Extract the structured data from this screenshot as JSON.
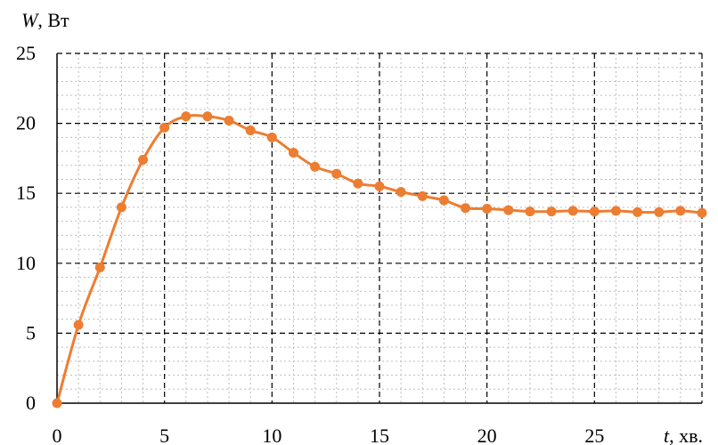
{
  "chart_data": {
    "type": "line",
    "title": "",
    "ylabel_var": "W",
    "ylabel_unit": ", Вт",
    "xlabel_var": "t",
    "xlabel_unit": ", хв.",
    "xlim": [
      0,
      30
    ],
    "ylim": [
      0,
      25
    ],
    "x_ticks": [
      0,
      5,
      10,
      15,
      20,
      25
    ],
    "y_ticks": [
      0,
      5,
      10,
      15,
      20,
      25
    ],
    "grid": {
      "major": "dashed",
      "minor": "dotted"
    },
    "legend": "none",
    "series": [
      {
        "color": "#ed7d31",
        "marker": "circle",
        "x": [
          0,
          1,
          2,
          3,
          4,
          5,
          6,
          7,
          8,
          9,
          10,
          11,
          12,
          13,
          14,
          15,
          16,
          17,
          18,
          19,
          20,
          21,
          22,
          23,
          24,
          25,
          26,
          27,
          28,
          29,
          30
        ],
        "y": [
          0,
          5.6,
          9.7,
          14.0,
          17.4,
          19.7,
          20.5,
          20.5,
          20.2,
          19.5,
          19.0,
          17.9,
          16.9,
          16.4,
          15.7,
          15.5,
          15.1,
          14.8,
          14.5,
          13.95,
          13.9,
          13.8,
          13.7,
          13.7,
          13.75,
          13.7,
          13.75,
          13.65,
          13.65,
          13.75,
          13.6
        ]
      }
    ]
  }
}
